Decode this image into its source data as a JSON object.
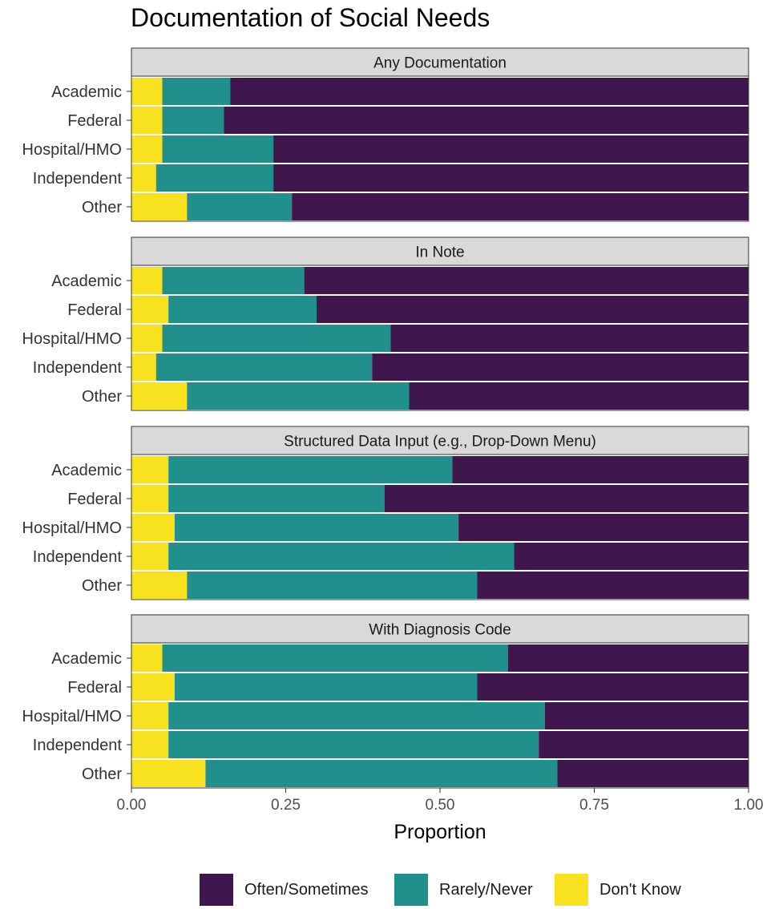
{
  "chart_data": {
    "type": "bar",
    "orientation": "horizontal",
    "stacked": true,
    "title": "Documentation of Social Needs",
    "xlabel": "Proportion",
    "ylabel": "",
    "xlim": [
      0,
      1
    ],
    "x_ticks": [
      "0.00",
      "0.25",
      "0.50",
      "0.75",
      "1.00"
    ],
    "categories": [
      "Academic",
      "Federal",
      "Hospital/HMO",
      "Independent",
      "Other"
    ],
    "legend_position": "bottom",
    "legend": [
      {
        "name": "Often/Sometimes",
        "color": "#40164f"
      },
      {
        "name": "Rarely/Never",
        "color": "#21908c"
      },
      {
        "name": "Don't Know",
        "color": "#f8e21f"
      }
    ],
    "panels": [
      {
        "title": "Any Documentation",
        "series": [
          {
            "name": "Don't Know",
            "values": [
              0.05,
              0.05,
              0.05,
              0.04,
              0.09
            ]
          },
          {
            "name": "Rarely/Never",
            "values": [
              0.11,
              0.1,
              0.18,
              0.19,
              0.17
            ]
          },
          {
            "name": "Often/Sometimes",
            "values": [
              0.84,
              0.85,
              0.77,
              0.77,
              0.74
            ]
          }
        ]
      },
      {
        "title": "In Note",
        "series": [
          {
            "name": "Don't Know",
            "values": [
              0.05,
              0.06,
              0.05,
              0.04,
              0.09
            ]
          },
          {
            "name": "Rarely/Never",
            "values": [
              0.23,
              0.24,
              0.37,
              0.35,
              0.36
            ]
          },
          {
            "name": "Often/Sometimes",
            "values": [
              0.72,
              0.7,
              0.58,
              0.61,
              0.55
            ]
          }
        ]
      },
      {
        "title": "Structured Data Input (e.g., Drop-Down Menu)",
        "series": [
          {
            "name": "Don't Know",
            "values": [
              0.06,
              0.06,
              0.07,
              0.06,
              0.09
            ]
          },
          {
            "name": "Rarely/Never",
            "values": [
              0.46,
              0.35,
              0.46,
              0.56,
              0.47
            ]
          },
          {
            "name": "Often/Sometimes",
            "values": [
              0.48,
              0.59,
              0.47,
              0.38,
              0.44
            ]
          }
        ]
      },
      {
        "title": "With Diagnosis Code",
        "series": [
          {
            "name": "Don't Know",
            "values": [
              0.05,
              0.07,
              0.06,
              0.06,
              0.12
            ]
          },
          {
            "name": "Rarely/Never",
            "values": [
              0.56,
              0.49,
              0.61,
              0.6,
              0.57
            ]
          },
          {
            "name": "Often/Sometimes",
            "values": [
              0.39,
              0.44,
              0.33,
              0.34,
              0.31
            ]
          }
        ]
      }
    ]
  }
}
